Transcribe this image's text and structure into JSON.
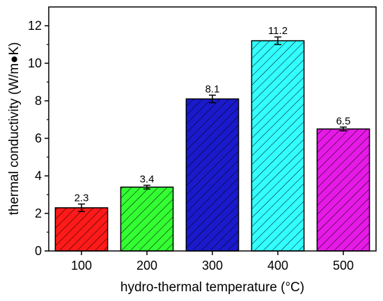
{
  "chart_data": {
    "type": "bar",
    "categories": [
      "100",
      "200",
      "300",
      "400",
      "500"
    ],
    "values": [
      2.3,
      3.4,
      8.1,
      11.2,
      6.5
    ],
    "errors": [
      0.2,
      0.1,
      0.2,
      0.2,
      0.1
    ],
    "data_labels": [
      "2.3",
      "3.4",
      "8.1",
      "11.2",
      "6.5"
    ],
    "colors": [
      "#ff1a1a",
      "#33ff33",
      "#1a1acc",
      "#33ffff",
      "#e61ae6"
    ],
    "fill_pattern": "diagonal-hatch",
    "xlabel": "hydro-thermal temperature (°C)",
    "ylabel": "thermal conductivity (W/m●K)",
    "ylim": [
      0,
      13
    ],
    "yticks": [
      0,
      2,
      4,
      6,
      8,
      10,
      12
    ],
    "ytick_labels": [
      "0",
      "2",
      "4",
      "6",
      "8",
      "10",
      "12"
    ],
    "grid": false,
    "legend": "none"
  }
}
